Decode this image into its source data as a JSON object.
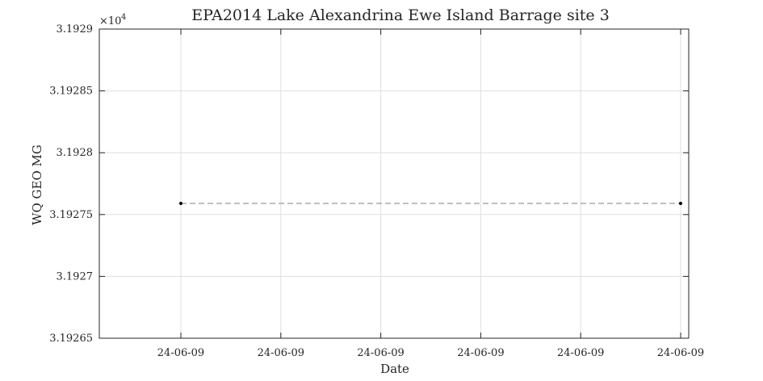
{
  "chart_data": {
    "type": "line",
    "title": "EPA2014 Lake Alexandrina Ewe Island Barrage site 3",
    "xlabel": "Date",
    "ylabel": "WQ GEO MG",
    "y_exponent_label": "×10",
    "y_exponent_power": "4",
    "ylim": [
      3.19265,
      3.1929
    ],
    "y_ticks": [
      "3.19265",
      "3.1927",
      "3.19275",
      "3.1928",
      "3.19285",
      "3.1929"
    ],
    "x_ticks": [
      "24-06-09",
      "24-06-09",
      "24-06-09",
      "24-06-09",
      "24-06-09",
      "24-06-09"
    ],
    "grid": true,
    "series": [
      {
        "x": [
          "24-06-09",
          "24-06-09"
        ],
        "values": [
          3.192759,
          3.192759
        ],
        "line_style": "dashed",
        "line_color": "#999999",
        "marker_color": "#000000"
      }
    ]
  }
}
